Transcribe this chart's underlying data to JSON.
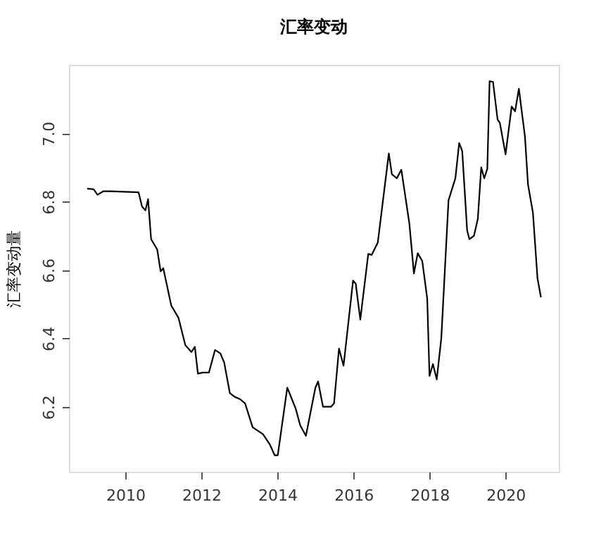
{
  "chart_data": {
    "type": "line",
    "title": "汇率变动",
    "ylabel": "汇率变动量",
    "x": [
      2009.0,
      2009.17,
      2009.27,
      2009.42,
      2009.6,
      2010.35,
      2010.44,
      2010.53,
      2010.6,
      2010.68,
      2010.84,
      2010.93,
      2011.0,
      2011.21,
      2011.4,
      2011.58,
      2011.74,
      2011.83,
      2011.91,
      2012.04,
      2012.2,
      2012.36,
      2012.5,
      2012.6,
      2012.75,
      2012.88,
      2013.02,
      2013.15,
      2013.35,
      2013.62,
      2013.8,
      2013.93,
      2014.01,
      2014.26,
      2014.48,
      2014.6,
      2014.75,
      2015.0,
      2015.07,
      2015.2,
      2015.41,
      2015.49,
      2015.62,
      2015.74,
      2015.99,
      2016.06,
      2016.18,
      2016.39,
      2016.48,
      2016.64,
      2016.93,
      2017.01,
      2017.14,
      2017.26,
      2017.47,
      2017.59,
      2017.69,
      2017.81,
      2017.94,
      2018.0,
      2018.09,
      2018.19,
      2018.31,
      2018.5,
      2018.68,
      2018.78,
      2018.86,
      2018.99,
      2019.05,
      2019.17,
      2019.27,
      2019.36,
      2019.44,
      2019.52,
      2019.58,
      2019.67,
      2019.79,
      2019.85,
      2020.0,
      2020.16,
      2020.25,
      2020.35,
      2020.51,
      2020.59,
      2020.72,
      2020.84,
      2020.93
    ],
    "series": [
      {
        "color": "#000000",
        "values": [
          6.838,
          6.836,
          6.82,
          6.83,
          6.83,
          6.827,
          6.786,
          6.774,
          6.807,
          6.69,
          6.66,
          6.596,
          6.605,
          6.496,
          6.46,
          6.38,
          6.36,
          6.375,
          6.297,
          6.3,
          6.3,
          6.366,
          6.356,
          6.33,
          6.24,
          6.229,
          6.222,
          6.21,
          6.14,
          6.12,
          6.09,
          6.058,
          6.058,
          6.256,
          6.195,
          6.146,
          6.115,
          6.256,
          6.274,
          6.2,
          6.2,
          6.21,
          6.37,
          6.32,
          6.569,
          6.56,
          6.455,
          6.647,
          6.644,
          6.68,
          6.941,
          6.88,
          6.868,
          6.893,
          6.736,
          6.59,
          6.649,
          6.626,
          6.516,
          6.29,
          6.325,
          6.28,
          6.4,
          6.804,
          6.868,
          6.971,
          6.948,
          6.715,
          6.69,
          6.7,
          6.749,
          6.9,
          6.868,
          6.896,
          7.152,
          7.15,
          7.04,
          7.03,
          6.938,
          7.078,
          7.064,
          7.13,
          6.99,
          6.85,
          6.767,
          6.575,
          6.52
        ]
      }
    ],
    "xlim": [
      2008.52,
      2021.4
    ],
    "ylim": [
      6.01,
      7.2
    ],
    "xticks": [
      2010,
      2012,
      2014,
      2016,
      2018,
      2020
    ],
    "yticks": [
      6.2,
      6.4,
      6.6,
      6.8,
      {
        "value": 7.0,
        "label": "7.0"
      }
    ],
    "grid": false,
    "marker": "none",
    "line_style": "solid"
  }
}
